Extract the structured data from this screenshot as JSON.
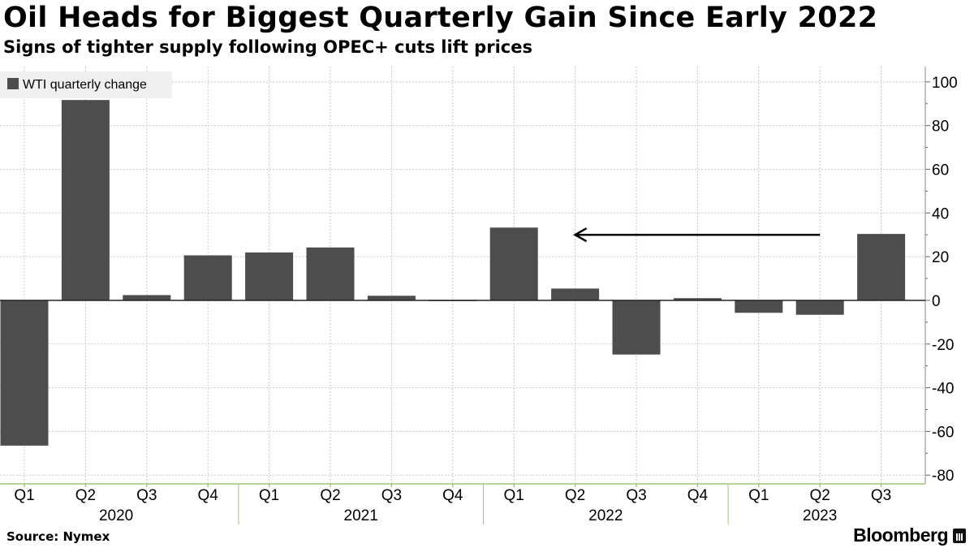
{
  "header": {
    "title": "Oil Heads for Biggest Quarterly Gain Since Early 2022",
    "subtitle": "Signs of tighter supply following OPEC+ cuts lift prices"
  },
  "footer": {
    "source": "Source: Nymex",
    "brand": "Bloomberg"
  },
  "colors": {
    "bar": "#4d4d4d",
    "grid": "#c8c8c8",
    "axis": "#9ec97a",
    "legend_bg": "#f0f0f0"
  },
  "chart_data": {
    "type": "bar",
    "title": "Oil Heads for Biggest Quarterly Gain Since Early 2022",
    "subtitle": "Signs of tighter supply following OPEC+ cuts lift prices",
    "categories": [
      "Q1",
      "Q2",
      "Q3",
      "Q4",
      "Q1",
      "Q2",
      "Q3",
      "Q4",
      "Q1",
      "Q2",
      "Q3",
      "Q4",
      "Q1",
      "Q2",
      "Q3"
    ],
    "years": [
      {
        "label": "2020",
        "start": 0,
        "end": 3
      },
      {
        "label": "2021",
        "start": 4,
        "end": 7
      },
      {
        "label": "2022",
        "start": 8,
        "end": 11
      },
      {
        "label": "2023",
        "start": 12,
        "end": 14
      }
    ],
    "series": [
      {
        "name": "WTI quarterly change",
        "values": [
          -66.5,
          91.7,
          2.4,
          20.6,
          21.9,
          24.2,
          2.1,
          0.2,
          33.3,
          5.4,
          -24.8,
          1.0,
          -5.7,
          -6.6,
          30.4
        ]
      }
    ],
    "y_ticks": [
      100,
      80,
      60,
      40,
      20,
      0,
      -20,
      -40,
      -60,
      -80
    ],
    "ylim": [
      -84,
      107
    ],
    "y_axis_side": "right",
    "grid": true,
    "legend_position": "top-left",
    "annotation": {
      "type": "arrow",
      "from_category_index": 13,
      "to_category_index": 9,
      "value": 30
    }
  }
}
